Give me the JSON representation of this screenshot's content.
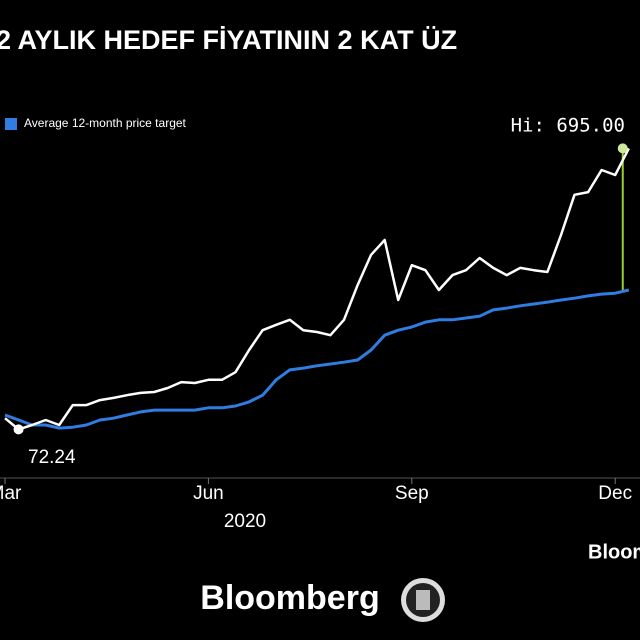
{
  "chart_data": {
    "type": "line",
    "title": "2 AYLIK HEDEF FİYATININ 2 KAT ÜZ",
    "categories": [
      "Mar",
      null,
      null,
      null,
      null,
      null,
      null,
      null,
      null,
      null,
      null,
      null,
      null,
      null,
      null,
      "Jun",
      null,
      null,
      null,
      null,
      null,
      null,
      null,
      null,
      null,
      null,
      null,
      null,
      null,
      null,
      "Sep",
      null,
      null,
      null,
      null,
      null,
      null,
      null,
      null,
      null,
      null,
      null,
      null,
      null,
      null,
      "Dec",
      null
    ],
    "x_label": "2020",
    "series": [
      {
        "color": "#ffffff",
        "values": [
          97,
          72.24,
          82,
          93,
          82,
          126,
          126,
          137,
          142,
          148,
          153,
          155,
          164,
          177,
          175,
          182,
          182,
          199,
          248,
          292,
          304,
          315,
          292,
          288,
          281,
          315,
          392,
          459,
          492,
          359,
          436,
          425,
          381,
          414,
          425,
          452,
          430,
          414,
          430,
          425,
          421,
          503,
          592,
          598,
          647,
          636,
          695
        ]
      },
      {
        "name": "Average 12-month price target",
        "color": "#2f7de1",
        "values": [
          104,
          93,
          82,
          82,
          75,
          77,
          82,
          93,
          97,
          104,
          111,
          115,
          115,
          115,
          115,
          120,
          120,
          124,
          133,
          148,
          182,
          204,
          208,
          213,
          217,
          221,
          226,
          248,
          281,
          292,
          299,
          310,
          315,
          315,
          319,
          323,
          337,
          341,
          346,
          350,
          354,
          359,
          363,
          368,
          372,
          374,
          381
        ]
      }
    ],
    "ylim": [
      -40,
      780
    ],
    "annotations": [
      "Hi: 695.00",
      "72.24"
    ],
    "source": "Bloomberg",
    "logo": "Bloomberg"
  }
}
